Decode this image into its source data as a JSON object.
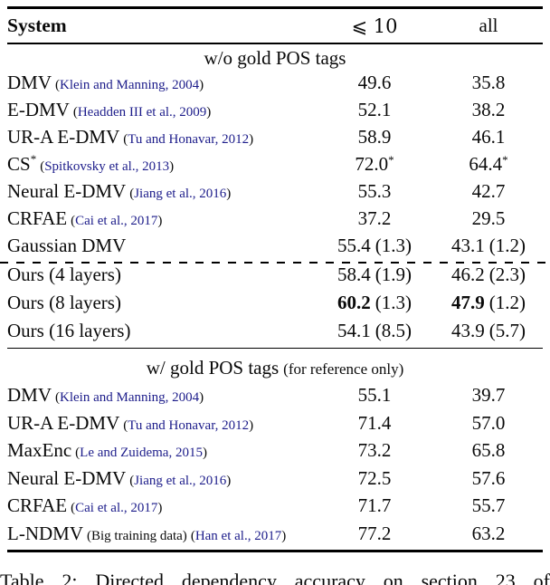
{
  "page": {
    "background": "#ffffff",
    "text_color": "#0a0a0a",
    "citation_color": "#1c1c8a"
  },
  "table": {
    "header": {
      "system": "System",
      "col_le10": "⩽ 10",
      "col_all": "all"
    },
    "sections": [
      {
        "title": "w/o gold POS tags",
        "title_note": "",
        "rows": [
          {
            "label": "DMV",
            "cite_open": "(",
            "cite_text": "Klein and Manning, 2004",
            "cite_close": ")",
            "v1": "49.6",
            "v2": "35.8"
          },
          {
            "label": "E-DMV",
            "cite_open": "(",
            "cite_text": "Headden III et al., 2009",
            "cite_close": ")",
            "v1": "52.1",
            "v2": "38.2"
          },
          {
            "label": "UR-A E-DMV",
            "cite_open": "(",
            "cite_text": "Tu and Honavar, 2012",
            "cite_close": ")",
            "v1": "58.9",
            "v2": "46.1"
          },
          {
            "label": "CS",
            "label_sup": "*",
            "cite_open": "(",
            "cite_text": "Spitkovsky et al., 2013",
            "cite_close": ")",
            "v1": "72.0",
            "v1_sup": "*",
            "v2": "64.4",
            "v2_sup": "*"
          },
          {
            "label": "Neural E-DMV",
            "cite_open": "(",
            "cite_text": "Jiang et al., 2016",
            "cite_close": ")",
            "v1": "55.3",
            "v2": "42.7"
          },
          {
            "label": "CRFAE",
            "cite_open": "(",
            "cite_text": "Cai et al., 2017",
            "cite_close": ")",
            "v1": "37.2",
            "v2": "29.5"
          },
          {
            "label": "Gaussian DMV",
            "v1": "55.4",
            "v1_paren": "(1.3)",
            "v2": "43.1",
            "v2_paren": "(1.2)"
          }
        ],
        "rows_below_dash": [
          {
            "label": "Ours (4 layers)",
            "v1": "58.4",
            "v1_paren": "(1.9)",
            "v2": "46.2",
            "v2_paren": "(2.3)"
          },
          {
            "label": "Ours (8 layers)",
            "bold_values": true,
            "v1": "60.2",
            "v1_paren": "(1.3)",
            "v2": "47.9",
            "v2_paren": "(1.2)"
          },
          {
            "label": "Ours (16 layers)",
            "v1": "54.1",
            "v1_paren": "(8.5)",
            "v2": "43.9",
            "v2_paren": "(5.7)"
          }
        ]
      },
      {
        "title": "w/ gold POS tags",
        "title_note": "(for reference only)",
        "rows": [
          {
            "label": "DMV",
            "cite_open": "(",
            "cite_text": "Klein and Manning, 2004",
            "cite_close": ")",
            "v1": "55.1",
            "v2": "39.7"
          },
          {
            "label": "UR-A E-DMV",
            "cite_open": "(",
            "cite_text": "Tu and Honavar, 2012",
            "cite_close": ")",
            "v1": "71.4",
            "v2": "57.0"
          },
          {
            "label": "MaxEnc",
            "cite_open": "(",
            "cite_text": "Le and Zuidema, 2015",
            "cite_close": ")",
            "v1": "73.2",
            "v2": "65.8"
          },
          {
            "label": "Neural E-DMV",
            "cite_open": "(",
            "cite_text": "Jiang et al., 2016",
            "cite_close": ")",
            "v1": "72.5",
            "v2": "57.6"
          },
          {
            "label": "CRFAE",
            "cite_open": "(",
            "cite_text": "Cai et al., 2017",
            "cite_close": ")",
            "v1": "71.7",
            "v2": "55.7"
          },
          {
            "label": "L-NDMV",
            "note": "(Big training data)",
            "cite_open": "(",
            "cite_text": "Han et al., 2017",
            "cite_close": ")",
            "v1": "77.2",
            "v2": "63.2"
          }
        ]
      }
    ]
  },
  "caption": {
    "words": [
      "Table",
      "2:",
      "Directed",
      "dependency",
      "accuracy",
      "on",
      "section",
      "23",
      "of"
    ]
  }
}
